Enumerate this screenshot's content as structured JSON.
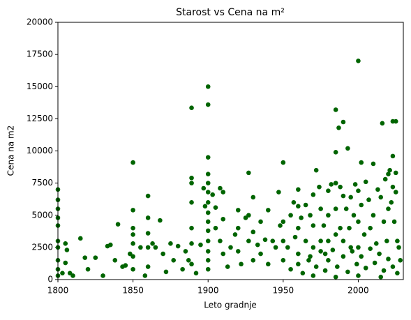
{
  "chart_data": {
    "type": "scatter",
    "title": "Starost vs Cena na m²",
    "x_label": "Leto gradnje",
    "y_label": "Cena na m2",
    "color": "#006400",
    "grid": false,
    "xlim": [
      1800,
      2030
    ],
    "xticks": [
      1800,
      1850,
      1900,
      1950,
      2000
    ],
    "ylim": [
      0,
      20000
    ],
    "yticks": [
      0,
      2500,
      5000,
      7500,
      10000,
      12500,
      15000,
      17500,
      20000
    ],
    "series": [
      {
        "name": "Cena na m2",
        "x": [
          1800,
          1800,
          1800,
          1800,
          1800,
          1800,
          1800,
          1800,
          1800,
          1800,
          1803,
          1805,
          1805,
          1806,
          1808,
          1810,
          1815,
          1818,
          1820,
          1825,
          1830,
          1833,
          1835,
          1838,
          1840,
          1843,
          1845,
          1848,
          1850,
          1850,
          1850,
          1850,
          1850,
          1850,
          1850,
          1855,
          1858,
          1860,
          1860,
          1860,
          1860,
          1860,
          1863,
          1865,
          1868,
          1870,
          1872,
          1875,
          1877,
          1880,
          1883,
          1885,
          1887,
          1889,
          1889,
          1889,
          1889,
          1889,
          1889,
          1889,
          1892,
          1895,
          1897,
          1898,
          1900,
          1900,
          1900,
          1900,
          1900,
          1900,
          1900,
          1900,
          1900,
          1900,
          1900,
          1900,
          1900,
          1900,
          1903,
          1905,
          1905,
          1908,
          1908,
          1910,
          1910,
          1910,
          1913,
          1915,
          1918,
          1920,
          1920,
          1920,
          1922,
          1925,
          1927,
          1927,
          1927,
          1930,
          1930,
          1930,
          1933,
          1935,
          1935,
          1938,
          1940,
          1940,
          1943,
          1945,
          1947,
          1948,
          1950,
          1950,
          1950,
          1950,
          1953,
          1955,
          1957,
          1958,
          1960,
          1960,
          1960,
          1960,
          1962,
          1965,
          1965,
          1967,
          1968,
          1970,
          1970,
          1970,
          1972,
          1974,
          1975,
          1975,
          1977,
          1978,
          1980,
          1980,
          1980,
          1982,
          1985,
          1985,
          1985,
          1985,
          1985,
          1987,
          1988,
          1988,
          1990,
          1990,
          1990,
          1992,
          1993,
          1994,
          1995,
          1995,
          1997,
          1998,
          2000,
          2000,
          2000,
          2000,
          2002,
          2002,
          2004,
          2005,
          2007,
          2008,
          2010,
          2010,
          2012,
          2013,
          2015,
          2016,
          2017,
          2018,
          2019,
          2020,
          2020,
          2021,
          2022,
          2023,
          2023,
          2023,
          2024,
          2025,
          2025,
          2025,
          2026,
          2027,
          2028,
          1955,
          1960,
          1963,
          1968,
          1972,
          1975,
          1978,
          1980,
          1983,
          1986,
          1990,
          1993,
          1996,
          1999,
          2002,
          2005,
          2008,
          2011,
          2014,
          2017,
          2020,
          2023,
          2026,
          1970,
          1985,
          2000,
          2015
        ],
        "values": [
          7000,
          6200,
          5500,
          4800,
          4200,
          3000,
          2500,
          1500,
          800,
          300,
          500,
          2800,
          1300,
          2300,
          500,
          300,
          3200,
          1700,
          800,
          1700,
          300,
          2600,
          2700,
          1500,
          4300,
          1000,
          1100,
          2000,
          9100,
          5400,
          4000,
          3500,
          2800,
          1800,
          800,
          2500,
          300,
          6500,
          4800,
          3600,
          2500,
          1000,
          2800,
          2500,
          4600,
          2000,
          600,
          2800,
          1500,
          2600,
          800,
          2200,
          1500,
          13350,
          7900,
          7500,
          6000,
          4000,
          2800,
          1200,
          500,
          2700,
          7100,
          5700,
          15000,
          13600,
          9500,
          8200,
          7500,
          6800,
          6000,
          5200,
          4500,
          3800,
          3000,
          2200,
          1500,
          800,
          6600,
          5600,
          4000,
          7100,
          3000,
          6800,
          4700,
          2000,
          1000,
          2500,
          3500,
          5400,
          4000,
          2200,
          1200,
          4800,
          8300,
          5000,
          3000,
          6400,
          3700,
          1500,
          2700,
          4500,
          2000,
          3100,
          5400,
          1200,
          3000,
          2500,
          6800,
          4200,
          9100,
          4500,
          3000,
          1500,
          2500,
          5000,
          6000,
          3300,
          7000,
          5700,
          4000,
          2000,
          4800,
          5800,
          3000,
          1500,
          5000,
          6600,
          4200,
          2500,
          8500,
          7200,
          5500,
          3000,
          4200,
          2000,
          6900,
          5000,
          3000,
          7400,
          13200,
          9900,
          7500,
          5500,
          3500,
          11800,
          7200,
          4000,
          12250,
          6500,
          3000,
          5500,
          10200,
          4000,
          6400,
          2500,
          5000,
          7400,
          17000,
          6900,
          4500,
          2500,
          9100,
          5800,
          3500,
          7600,
          6200,
          4000,
          9000,
          5000,
          2800,
          7000,
          6400,
          12150,
          4500,
          7800,
          3000,
          8200,
          5500,
          8500,
          6000,
          12300,
          9600,
          7200,
          4500,
          12300,
          8300,
          6800,
          3000,
          2500,
          1500,
          800,
          1200,
          500,
          1800,
          1000,
          2200,
          700,
          1500,
          2300,
          1000,
          1800,
          600,
          2200,
          1200,
          1800,
          900,
          2400,
          1300,
          2000,
          700,
          1600,
          1000,
          500,
          300,
          200,
          300,
          200
        ]
      }
    ]
  }
}
